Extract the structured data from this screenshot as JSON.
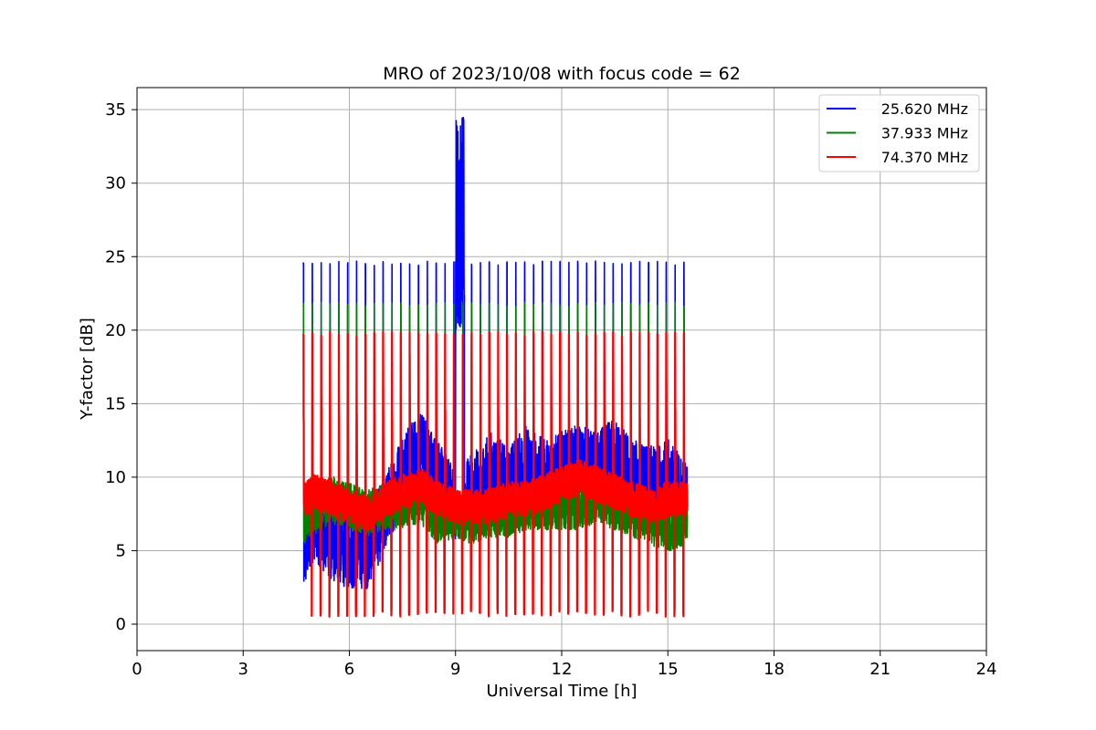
{
  "chart_data": {
    "type": "line",
    "title": "MRO of 2023/10/08 with focus code = 62",
    "xlabel": "Universal Time [h]",
    "ylabel": "Y-factor [dB]",
    "xlim": [
      0,
      24
    ],
    "ylim": [
      -1.8,
      36.5
    ],
    "xticks": [
      0,
      3,
      6,
      9,
      12,
      15,
      18,
      21,
      24
    ],
    "yticks": [
      0,
      5,
      10,
      15,
      20,
      25,
      30,
      35
    ],
    "grid": true,
    "legend_position": "top-right",
    "time_range_h": [
      4.7,
      15.55
    ],
    "pulse_period_h": 0.25,
    "series": [
      {
        "name": "25.620 MHz",
        "color": "#0000ff",
        "pulse_peak_db": 24.7,
        "baseline_db": [
          [
            4.7,
            4.5
          ],
          [
            5.0,
            7.0
          ],
          [
            5.5,
            5.5
          ],
          [
            6.0,
            5.0
          ],
          [
            6.5,
            5.0
          ],
          [
            7.0,
            7.5
          ],
          [
            7.5,
            10.5
          ],
          [
            8.0,
            12.0
          ],
          [
            8.5,
            10.0
          ],
          [
            9.0,
            8.0
          ],
          [
            9.5,
            9.0
          ],
          [
            10.0,
            10.5
          ],
          [
            10.5,
            9.5
          ],
          [
            11.0,
            11.0
          ],
          [
            11.5,
            10.0
          ],
          [
            12.0,
            10.5
          ],
          [
            12.5,
            11.0
          ],
          [
            13.0,
            10.5
          ],
          [
            13.5,
            11.5
          ],
          [
            14.0,
            10.0
          ],
          [
            14.5,
            9.5
          ],
          [
            15.0,
            10.0
          ],
          [
            15.55,
            8.5
          ]
        ],
        "burst": {
          "t_start_h": 9.0,
          "t_end_h": 9.25,
          "max_db": 34.7
        }
      },
      {
        "name": "37.933 MHz",
        "color": "#008000",
        "pulse_peak_db": 21.9,
        "baseline_db": [
          [
            4.7,
            7.0
          ],
          [
            5.0,
            7.5
          ],
          [
            5.5,
            8.5
          ],
          [
            6.0,
            8.0
          ],
          [
            6.5,
            7.5
          ],
          [
            7.0,
            8.0
          ],
          [
            7.5,
            8.0
          ],
          [
            8.0,
            8.5
          ],
          [
            8.5,
            7.0
          ],
          [
            9.0,
            7.5
          ],
          [
            9.5,
            7.0
          ],
          [
            10.0,
            7.5
          ],
          [
            10.5,
            7.5
          ],
          [
            11.0,
            8.0
          ],
          [
            11.5,
            8.0
          ],
          [
            12.0,
            8.0
          ],
          [
            12.5,
            8.0
          ],
          [
            13.0,
            8.5
          ],
          [
            13.5,
            8.0
          ],
          [
            14.0,
            7.5
          ],
          [
            14.5,
            7.0
          ],
          [
            15.0,
            6.5
          ],
          [
            15.55,
            7.0
          ]
        ]
      },
      {
        "name": "74.370 MHz",
        "color": "#ff0000",
        "pulse_peak_db": 19.9,
        "pulse_trough_db": 0.5,
        "baseline_db": [
          [
            4.7,
            8.5
          ],
          [
            5.0,
            9.0
          ],
          [
            5.5,
            8.5
          ],
          [
            6.0,
            8.0
          ],
          [
            6.5,
            7.5
          ],
          [
            7.0,
            8.5
          ],
          [
            7.5,
            9.0
          ],
          [
            8.0,
            9.5
          ],
          [
            8.5,
            8.5
          ],
          [
            9.0,
            8.0
          ],
          [
            9.5,
            8.0
          ],
          [
            10.0,
            8.0
          ],
          [
            10.5,
            8.5
          ],
          [
            11.0,
            8.5
          ],
          [
            11.5,
            9.0
          ],
          [
            12.0,
            9.5
          ],
          [
            12.5,
            10.0
          ],
          [
            13.0,
            9.5
          ],
          [
            13.5,
            9.0
          ],
          [
            14.0,
            8.5
          ],
          [
            14.5,
            8.0
          ],
          [
            15.0,
            8.5
          ],
          [
            15.55,
            8.5
          ]
        ]
      }
    ]
  }
}
